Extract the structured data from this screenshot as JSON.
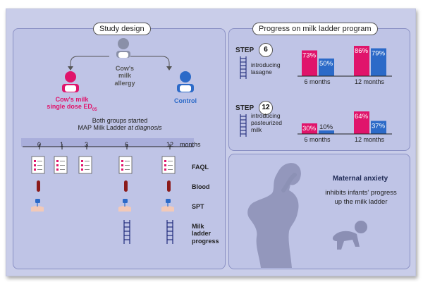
{
  "study_design": {
    "title": "Study design",
    "center_label": "Cow's milk allergy",
    "left_label_line1": "Cow's milk",
    "left_label_line2_prefix": "single dose ED",
    "left_label_subscript": "05",
    "right_label": "Control",
    "started_line1": "Both groups started",
    "started_line2_prefix": "MAP Milk Ladder ",
    "started_line2_italic": "at diagnosis",
    "months": [
      "0",
      "1",
      "3",
      "6",
      "12"
    ],
    "months_unit": "months",
    "rows": [
      {
        "label": "FAQL",
        "icon": "questionnaire-icon",
        "cols": [
          "0",
          "1",
          "3",
          "6",
          "12"
        ]
      },
      {
        "label": "Blood",
        "icon": "blood-tube-icon",
        "cols": [
          "0",
          "6",
          "12"
        ]
      },
      {
        "label": "SPT",
        "icon": "skin-prick-test-icon",
        "cols": [
          "0",
          "6",
          "12"
        ]
      },
      {
        "label": "Milk ladder progress",
        "icon": "ladder-icon",
        "cols": [
          "6",
          "12"
        ]
      }
    ],
    "colors": {
      "pink": "#e0146b",
      "blue": "#2c6ac8",
      "grey": "#8a90a8"
    }
  },
  "progress": {
    "title": "Progress on milk ladder program",
    "steps": [
      {
        "step_label": "STEP",
        "step_number": "6",
        "desc_line1": "introducing",
        "desc_line2": "lasagne",
        "desc_line3": ""
      },
      {
        "step_label": "STEP",
        "step_number": "12",
        "desc_line1": "introducing",
        "desc_line2": "pasteurized",
        "desc_line3": "milk"
      }
    ]
  },
  "chart_data": [
    {
      "type": "bar",
      "categories": [
        "6 months",
        "12 months"
      ],
      "series": [
        {
          "color": "#e0146b",
          "values": [
            73,
            86
          ],
          "labels": [
            "73%",
            "86%"
          ]
        },
        {
          "color": "#2c6ac8",
          "values": [
            50,
            79
          ],
          "labels": [
            "50%",
            "79%"
          ]
        }
      ],
      "ylim": [
        0,
        100
      ]
    },
    {
      "type": "bar",
      "categories": [
        "6 months",
        "12 months"
      ],
      "series": [
        {
          "color": "#e0146b",
          "values": [
            30,
            64
          ],
          "labels": [
            "30%",
            "64%"
          ]
        },
        {
          "color": "#2c6ac8",
          "values": [
            10,
            37
          ],
          "labels": [
            "10%",
            "37%"
          ]
        }
      ],
      "ylim": [
        0,
        100
      ]
    }
  ],
  "maternal": {
    "title": "Maternal anxiety",
    "line1": "inhibits infants' progress",
    "line2": "up the milk ladder"
  }
}
